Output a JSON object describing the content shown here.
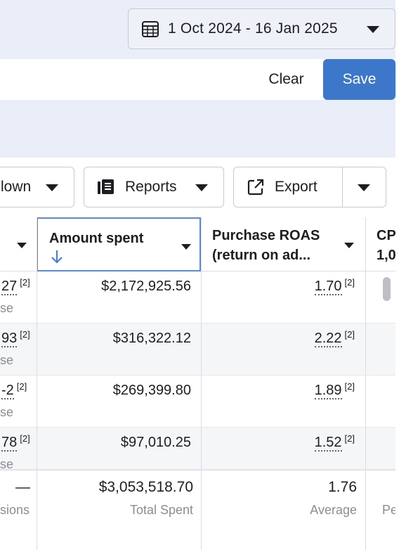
{
  "date_range": {
    "label": "1 Oct 2024 - 16 Jan 2025"
  },
  "save_bar": {
    "clear_label": "Clear",
    "save_label": "Save"
  },
  "toolbar": {
    "breakdown_label": "lown",
    "reports_label": "Reports",
    "export_label": "Export"
  },
  "table": {
    "columns": [
      {
        "title": "",
        "partial": true
      },
      {
        "title": "Amount spent",
        "sort": "descending"
      },
      {
        "title_line1": "Purchase ROAS",
        "title_line2": "(return on ad..."
      },
      {
        "title_line1": "CP",
        "title_line2": "1,0"
      }
    ],
    "rows": [
      {
        "col0": "27",
        "col0_sub": "se",
        "amount": "$2,172,925.56",
        "roas": "1.70",
        "ref": "[2]"
      },
      {
        "col0": "93",
        "col0_sub": "se",
        "amount": "$316,322.12",
        "roas": "2.22",
        "ref": "[2]"
      },
      {
        "col0": "-2",
        "col0_sub": "se",
        "amount": "$269,399.80",
        "roas": "1.89",
        "ref": "[2]"
      },
      {
        "col0": "78",
        "col0_sub": "se",
        "amount": "$97,010.25",
        "roas": "1.52",
        "ref": "[2]"
      }
    ],
    "footer": {
      "col0_value": "—",
      "col0_sub": "sions",
      "amount_value": "$3,053,518.70",
      "amount_sub": "Total Spent",
      "roas_value": "1.76",
      "roas_sub": "Average",
      "col3_sub": "Pe"
    }
  },
  "icons": {
    "calendar": "calendar-icon",
    "reports": "reports-icon",
    "export": "export-icon"
  }
}
